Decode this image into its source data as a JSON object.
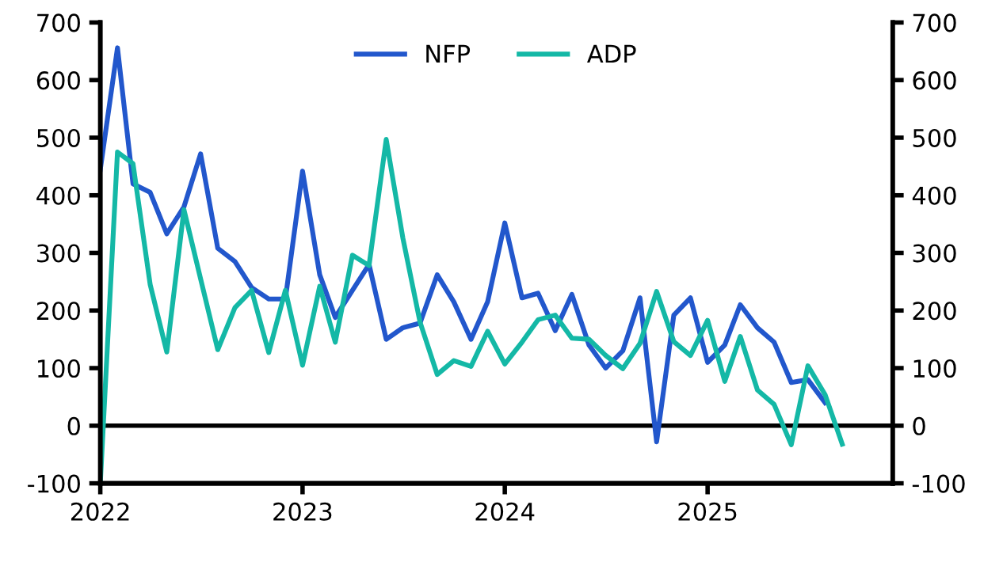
{
  "chart_data": {
    "type": "line",
    "x": [
      "2022-01",
      "2022-02",
      "2022-03",
      "2022-04",
      "2022-05",
      "2022-06",
      "2022-07",
      "2022-08",
      "2022-09",
      "2022-10",
      "2022-11",
      "2022-12",
      "2023-01",
      "2023-02",
      "2023-03",
      "2023-04",
      "2023-05",
      "2023-06",
      "2023-07",
      "2023-08",
      "2023-09",
      "2023-10",
      "2023-11",
      "2023-12",
      "2024-01",
      "2024-02",
      "2024-03",
      "2024-04",
      "2024-05",
      "2024-06",
      "2024-07",
      "2024-08",
      "2024-09",
      "2024-10",
      "2024-11",
      "2024-12",
      "2025-01",
      "2025-02",
      "2025-03",
      "2025-04",
      "2025-05",
      "2025-06",
      "2025-07",
      "2025-08",
      "2025-09"
    ],
    "series": [
      {
        "name": "NFP",
        "color": "#2257cc",
        "values": [
          445,
          656,
          420,
          405,
          333,
          380,
          472,
          308,
          285,
          240,
          220,
          220,
          442,
          262,
          188,
          235,
          280,
          150,
          170,
          178,
          262,
          215,
          150,
          215,
          352,
          222,
          230,
          165,
          228,
          140,
          100,
          130,
          222,
          -28,
          192,
          222,
          110,
          140,
          210,
          170,
          145,
          75,
          80,
          40,
          null
        ]
      },
      {
        "name": "ADP",
        "color": "#14b8a6",
        "values": [
          -100,
          475,
          455,
          245,
          128,
          375,
          255,
          132,
          205,
          235,
          127,
          235,
          105,
          242,
          145,
          296,
          278,
          497,
          326,
          180,
          89,
          113,
          103,
          164,
          107,
          145,
          184,
          192,
          152,
          150,
          122,
          99,
          143,
          233,
          146,
          122,
          183,
          77,
          155,
          62,
          37,
          -33,
          104,
          54,
          -32
        ]
      }
    ],
    "xlim": [
      "2022-01",
      "2025-12"
    ],
    "xticks": [
      {
        "value": "2022-01",
        "label": "2022"
      },
      {
        "value": "2023-01",
        "label": "2023"
      },
      {
        "value": "2024-01",
        "label": "2024"
      },
      {
        "value": "2025-01",
        "label": "2025"
      }
    ],
    "ylim": [
      -100,
      700
    ],
    "yticks": [
      -100,
      0,
      100,
      200,
      300,
      400,
      500,
      600,
      700
    ],
    "y2lim": [
      -100,
      700
    ],
    "y2ticks": [
      -100,
      0,
      100,
      200,
      300,
      400,
      500,
      600,
      700
    ],
    "ref_lines": [
      {
        "axis": "y",
        "value": 0,
        "color": "#000000"
      }
    ],
    "legend": "top",
    "grid": false
  }
}
